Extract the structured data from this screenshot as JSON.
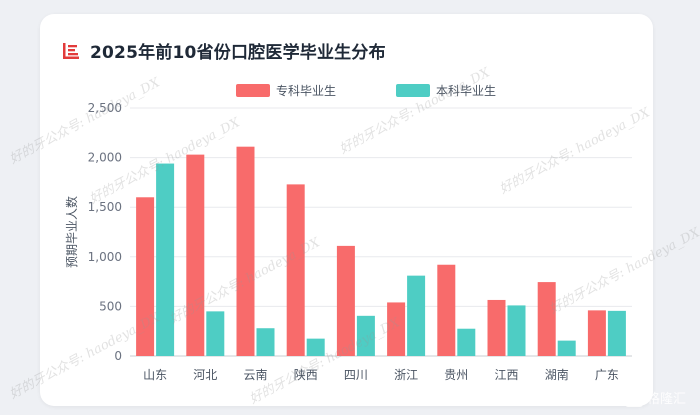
{
  "watermark_text": "好的牙公众号: haodeya_DX",
  "logo_text": "格隆汇",
  "chart_data": {
    "type": "bar",
    "title": "2025年前10省份口腔医学毕业生分布",
    "ylabel": "预期毕业人数",
    "xlabel": "",
    "categories": [
      "山东",
      "河北",
      "云南",
      "陕西",
      "四川",
      "浙江",
      "贵州",
      "江西",
      "湖南",
      "广东"
    ],
    "series": [
      {
        "name": "专科毕业生",
        "color": "#f86b6b",
        "values": [
          1600,
          2030,
          2110,
          1730,
          1110,
          540,
          920,
          565,
          745,
          460
        ]
      },
      {
        "name": "本科毕业生",
        "color": "#4ecdc4",
        "values": [
          1940,
          450,
          280,
          175,
          405,
          810,
          275,
          510,
          155,
          455
        ]
      }
    ],
    "ylim": [
      0,
      2500
    ],
    "yticks": [
      "0",
      "500",
      "1,000",
      "1,500",
      "2,000",
      "2,500"
    ],
    "ytick_values": [
      0,
      500,
      1000,
      1500,
      2000,
      2500
    ],
    "grid": true,
    "legend_position": "top-center"
  }
}
